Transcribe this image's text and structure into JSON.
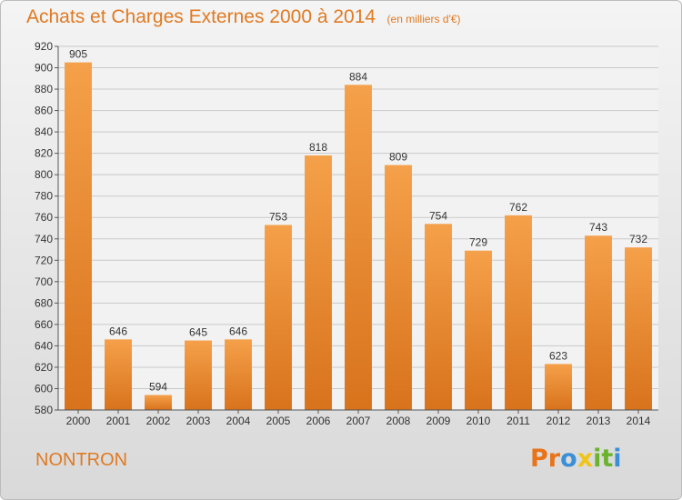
{
  "chart_data": {
    "type": "bar",
    "title": "Achats et Charges Externes 2000 à 2014",
    "subtitle": "(en milliers d'€)",
    "xlabel": "",
    "ylabel": "",
    "categories": [
      "2000",
      "2001",
      "2002",
      "2003",
      "2004",
      "2005",
      "2006",
      "2007",
      "2008",
      "2009",
      "2010",
      "2011",
      "2012",
      "2013",
      "2014"
    ],
    "values": [
      905,
      646,
      594,
      645,
      646,
      753,
      818,
      884,
      809,
      754,
      729,
      762,
      623,
      743,
      732
    ],
    "ylim": [
      580,
      920
    ],
    "yticks": [
      580,
      600,
      620,
      640,
      660,
      680,
      700,
      720,
      740,
      760,
      780,
      800,
      820,
      840,
      860,
      880,
      900,
      920
    ],
    "grid": true,
    "bar_color": "#f5a04a",
    "bar_color_dark": "#d8731c"
  },
  "footer": {
    "city": "NONTRON",
    "logo_letters": [
      "P",
      "r",
      "o",
      "x",
      "i",
      "t",
      "i"
    ],
    "logo_colors": [
      "#e8731a",
      "#e8731a",
      "#3a8fd6",
      "#f0c419",
      "#6ab42d",
      "#6ab42d",
      "#3a8fd6"
    ]
  }
}
